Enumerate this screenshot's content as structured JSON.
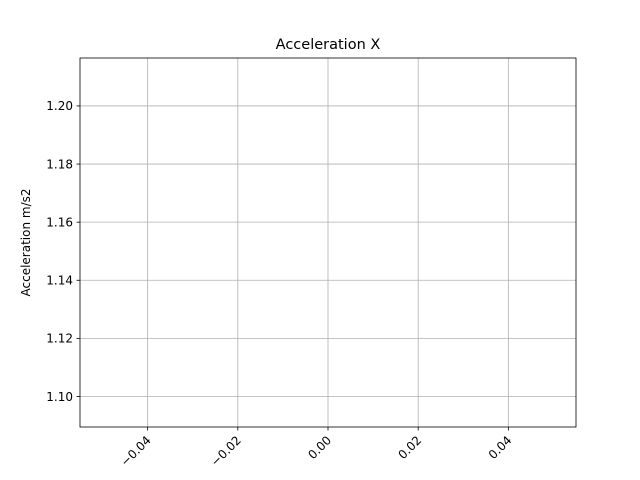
{
  "chart_data": {
    "type": "line",
    "title": "Acceleration X",
    "xlabel": "",
    "ylabel": "Acceleration m/s2",
    "xlim": [
      -0.055,
      0.055
    ],
    "ylim": [
      1.0895,
      1.2165
    ],
    "x_ticks": [
      -0.04,
      -0.02,
      0.0,
      0.02,
      0.04
    ],
    "x_tick_labels": [
      "−0.04",
      "−0.02",
      "0.00",
      "0.02",
      "0.04"
    ],
    "y_ticks": [
      1.1,
      1.12,
      1.14,
      1.16,
      1.18,
      1.2
    ],
    "y_tick_labels": [
      "1.10",
      "1.12",
      "1.14",
      "1.16",
      "1.18",
      "1.20"
    ],
    "grid": true,
    "series": [
      {
        "x": [],
        "y": []
      }
    ]
  }
}
